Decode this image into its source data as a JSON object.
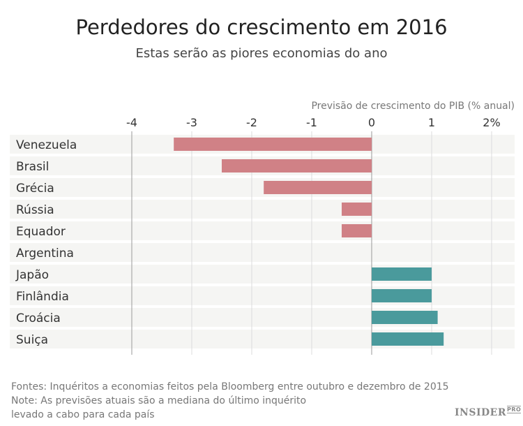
{
  "chart_data": {
    "type": "bar",
    "orientation": "horizontal",
    "title": "Perdedores do crescimento em 2016",
    "subtitle": "Estas serão as piores economias do ano",
    "xlabel": "Previsão de crescimento do PIB (% anual)",
    "xlim": [
      -4,
      2.4
    ],
    "ticks": [
      -4,
      -3,
      -2,
      -1,
      0,
      1,
      2
    ],
    "tick_labels": [
      "-4",
      "-3",
      "-2",
      "-1",
      "0",
      "1",
      "2%"
    ],
    "categories": [
      "Venezuela",
      "Brasil",
      "Grécia",
      "Rússia",
      "Equador",
      "Argentina",
      "Japão",
      "Finlândia",
      "Croácia",
      "Suiça"
    ],
    "values": [
      -3.3,
      -2.5,
      -1.8,
      -0.5,
      -0.5,
      0,
      1.0,
      1.0,
      1.1,
      1.2
    ],
    "colors": {
      "negative": "#d08186",
      "positive": "#4a9a9c",
      "row_band": "#f5f5f3",
      "grid": "#dcdcdc",
      "axis": "#999999"
    },
    "grid": true
  },
  "notes": {
    "sources": "Fontes: Inquéritos a economias feitos pela Bloomberg entre outubro e dezembro de 2015",
    "note_line1": "Note: As previsões atuais são a mediana do último inquérito",
    "note_line2": "levado a cabo para cada país"
  },
  "logo": {
    "main": "INSIDER",
    "sup": "PRO"
  }
}
